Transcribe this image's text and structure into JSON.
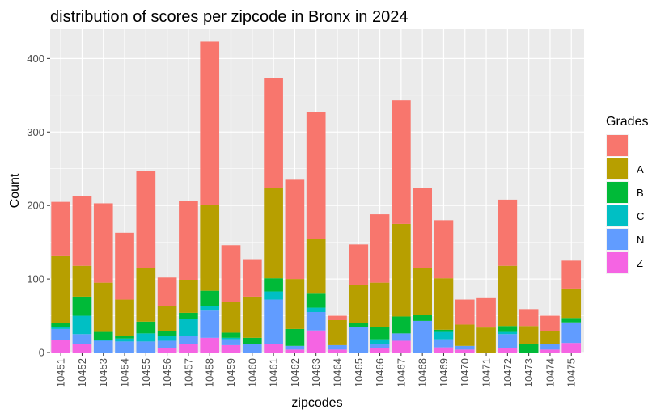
{
  "chart_data": {
    "type": "bar",
    "stacked": true,
    "title": "distribution of scores per zipcode in Bronx in 2024",
    "xlabel": "zipcodes",
    "ylabel": "Count",
    "ylim": [
      0,
      440
    ],
    "yticks": [
      0,
      100,
      200,
      300,
      400
    ],
    "grid": true,
    "legend": {
      "title": "Grades",
      "position": "right"
    },
    "categories": [
      "10451",
      "10452",
      "10453",
      "10454",
      "10455",
      "10456",
      "10457",
      "10458",
      "10459",
      "10460",
      "10461",
      "10462",
      "10463",
      "10464",
      "10465",
      "10466",
      "10467",
      "10468",
      "10469",
      "10470",
      "10471",
      "10472",
      "10473",
      "10474",
      "10475"
    ],
    "series": [
      {
        "name": "Z",
        "color": "#F564E3",
        "values": [
          17,
          12,
          0,
          0,
          0,
          6,
          12,
          20,
          10,
          0,
          12,
          4,
          30,
          4,
          0,
          6,
          16,
          0,
          7,
          4,
          0,
          6,
          0,
          4,
          13
        ]
      },
      {
        "name": "N",
        "color": "#619CFF",
        "values": [
          15,
          13,
          16,
          15,
          15,
          10,
          10,
          37,
          8,
          11,
          60,
          5,
          25,
          6,
          35,
          6,
          10,
          43,
          11,
          5,
          0,
          19,
          0,
          7,
          28
        ]
      },
      {
        "name": "C",
        "color": "#00BFC4",
        "values": [
          3,
          25,
          1,
          4,
          11,
          6,
          24,
          6,
          2,
          0,
          11,
          0,
          6,
          0,
          0,
          6,
          0,
          0,
          10,
          0,
          0,
          3,
          0,
          0,
          0
        ]
      },
      {
        "name": "B",
        "color": "#00BA38",
        "values": [
          5,
          26,
          11,
          4,
          16,
          7,
          8,
          21,
          7,
          9,
          18,
          23,
          19,
          0,
          5,
          17,
          23,
          8,
          3,
          0,
          0,
          8,
          11,
          0,
          6
        ]
      },
      {
        "name": "A",
        "color": "#B79F00",
        "values": [
          91,
          42,
          67,
          49,
          73,
          34,
          45,
          117,
          42,
          56,
          123,
          68,
          75,
          34,
          52,
          60,
          126,
          64,
          70,
          29,
          34,
          82,
          25,
          18,
          40
        ]
      },
      {
        "name": "",
        "color": "#F8766D",
        "values": [
          74,
          95,
          108,
          91,
          132,
          39,
          107,
          222,
          77,
          51,
          149,
          135,
          172,
          6,
          55,
          93,
          168,
          109,
          79,
          34,
          41,
          90,
          23,
          21,
          38
        ]
      }
    ],
    "legend_order": [
      "",
      "A",
      "B",
      "C",
      "N",
      "Z"
    ]
  }
}
